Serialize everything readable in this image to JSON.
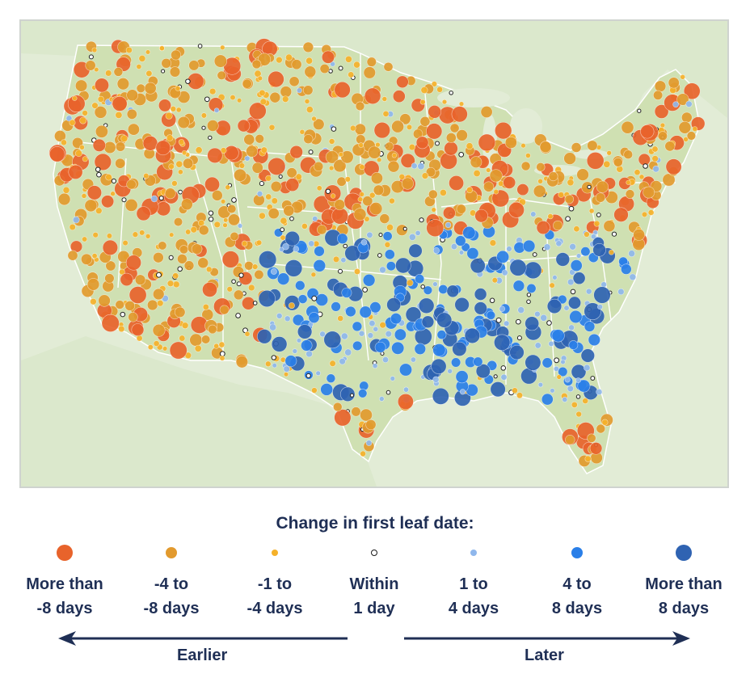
{
  "legend": {
    "title": "Change in first leaf date:",
    "items": [
      {
        "label": "More than\n-8 days",
        "color": "#e8632b",
        "size": "large"
      },
      {
        "label": "-4 to\n-8 days",
        "color": "#e29a2e",
        "size": "medium"
      },
      {
        "label": "-1 to\n-4 days",
        "color": "#f5b12a",
        "size": "small"
      },
      {
        "label": "Within\n1 day",
        "color": "#ffffff",
        "size": "tiny"
      },
      {
        "label": "1 to\n4 days",
        "color": "#8fb7ec",
        "size": "small"
      },
      {
        "label": "4 to\n8 days",
        "color": "#2a7fe8",
        "size": "medium"
      },
      {
        "label": "More than\n8 days",
        "color": "#2f63b2",
        "size": "large"
      }
    ]
  },
  "direction": {
    "earlier": "Earlier",
    "later": "Later"
  },
  "map": {
    "land_color": "#cfe0b2",
    "water_color": "#e2ecd6",
    "border_color": "#ffffff"
  }
}
